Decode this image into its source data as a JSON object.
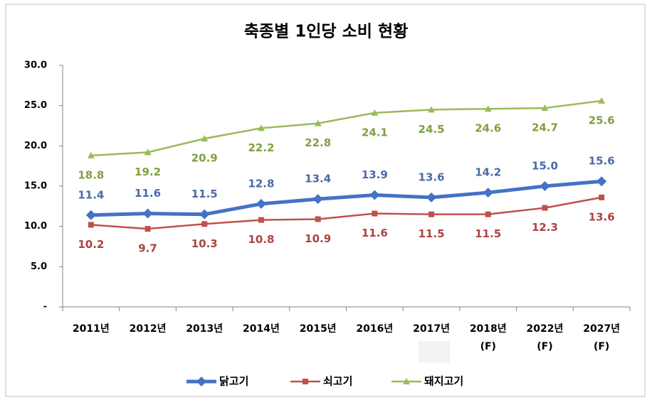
{
  "chart_data": {
    "type": "line",
    "title": "축종별 1인당 소비 현황",
    "categories": [
      "2011년",
      "2012년",
      "2013년",
      "2014년",
      "2015년",
      "2016년",
      "2017년",
      "2018년\n(F)",
      "2022년\n(F)",
      "2027년\n(F)"
    ],
    "series": [
      {
        "name": "닭고기",
        "color": "#4472c4",
        "marker": "diamond",
        "label_position": "above",
        "values": [
          11.4,
          11.6,
          11.5,
          12.8,
          13.4,
          13.9,
          13.6,
          14.2,
          15.0,
          15.6
        ],
        "value_labels": [
          "11.4",
          "11.6",
          "11.5",
          "12.8",
          "13.4",
          "13.9",
          "13.6",
          "14.2",
          "15.0",
          "15.6"
        ]
      },
      {
        "name": "쇠고기",
        "color": "#c0504d",
        "marker": "square",
        "label_position": "below",
        "values": [
          10.2,
          9.7,
          10.3,
          10.8,
          10.9,
          11.6,
          11.5,
          11.5,
          12.3,
          13.6
        ],
        "value_labels": [
          "10.2",
          "9.7",
          "10.3",
          "10.8",
          "10.9",
          "11.6",
          "11.5",
          "11.5",
          "12.3",
          "13.6"
        ]
      },
      {
        "name": "돼지고기",
        "color": "#9bbb59",
        "marker": "triangle",
        "label_position": "below",
        "values": [
          18.8,
          19.2,
          20.9,
          22.2,
          22.8,
          24.1,
          24.5,
          24.6,
          24.7,
          25.6
        ],
        "value_labels": [
          "18.8",
          "19.2",
          "20.9",
          "22.2",
          "22.8",
          "24.1",
          "24.5",
          "24.6",
          "24.7",
          "25.6"
        ]
      }
    ],
    "ylim": [
      0,
      30
    ],
    "yticks": [
      {
        "value": 0,
        "label": "-"
      },
      {
        "value": 5,
        "label": "5.0"
      },
      {
        "value": 10,
        "label": "10.0"
      },
      {
        "value": 15,
        "label": "15.0"
      },
      {
        "value": 20,
        "label": "20.0"
      },
      {
        "value": 25,
        "label": "25.0"
      },
      {
        "value": 30,
        "label": "30.0"
      }
    ],
    "legend": "bottom"
  }
}
